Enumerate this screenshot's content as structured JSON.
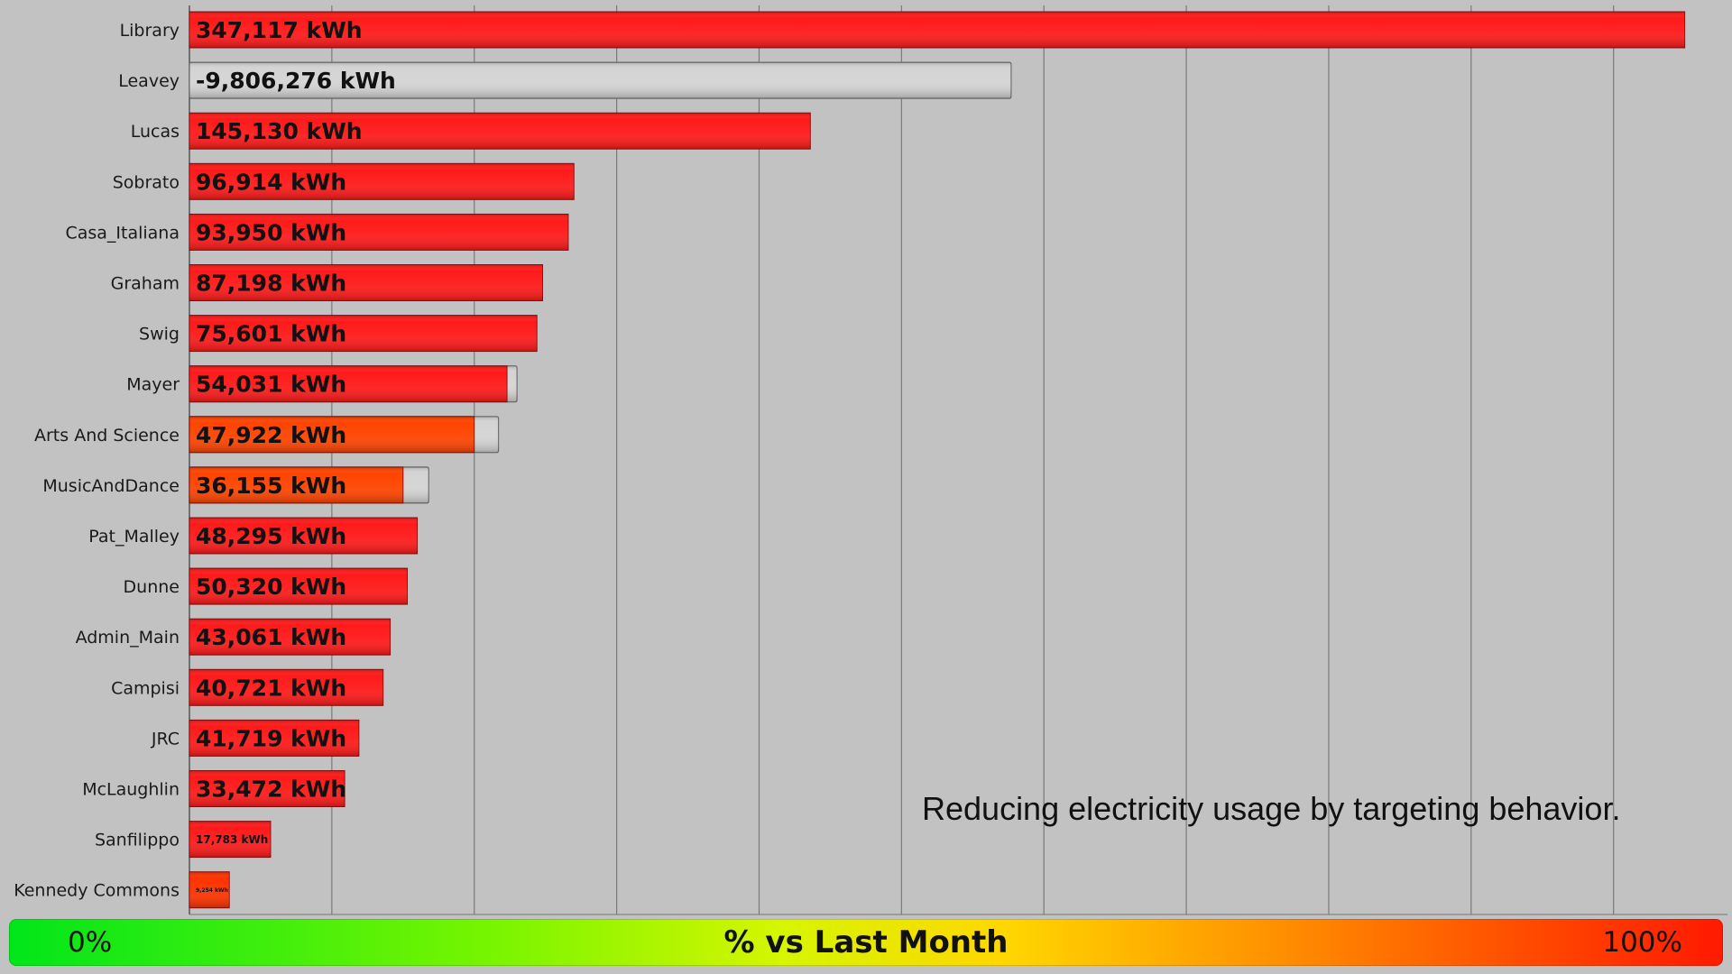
{
  "chart_data": {
    "type": "bar",
    "orientation": "horizontal",
    "categories": [
      "Library",
      "Leavey",
      "Lucas",
      "Sobrato",
      "Casa_Italiana",
      "Graham",
      "Swig",
      "Mayer",
      "Arts And Science",
      "MusicAndDance",
      "Pat_Malley",
      "Dunne",
      "Admin_Main",
      "Campisi",
      "JRC",
      "McLaughlin",
      "Sanfilippo",
      "Kennedy Commons"
    ],
    "value_labels": [
      "347,117 kWh",
      "-9,806,276 kWh",
      "145,130 kWh",
      "96,914 kWh",
      "93,950 kWh",
      "87,198 kWh",
      "75,601 kWh",
      "54,031 kWh",
      "47,922 kWh",
      "36,155 kWh",
      "48,295 kWh",
      "50,320 kWh",
      "43,061 kWh",
      "40,721 kWh",
      "41,719 kWh",
      "33,472 kWh",
      "17,783 kWh",
      "9,254 kWh"
    ],
    "series": [
      {
        "values": [
          105,
          0,
          43.6,
          27,
          26.6,
          24.8,
          24.4,
          22.3,
          20,
          15,
          16,
          15.3,
          14.1,
          13.6,
          11.9,
          10.9,
          5.7,
          2.8
        ]
      },
      {
        "values": [
          0,
          57.7,
          0,
          0,
          0,
          0,
          0,
          23,
          21.7,
          16.8,
          0,
          0,
          0,
          0,
          0,
          0,
          0,
          0
        ]
      }
    ],
    "bar_colors": [
      "#ff1a1a",
      "#ff1a1a",
      "#ff1a1a",
      "#ff1a1a",
      "#ff1a1a",
      "#ff1a1a",
      "#ff1a1a",
      "#ff1a1a",
      "#ff4400",
      "#ff4400",
      "#ff1a1a",
      "#ff1a1a",
      "#ff1a1a",
      "#ff1a1a",
      "#ff1a1a",
      "#ff1a1a",
      "#ff1a1a",
      "#ff3300"
    ],
    "x_range": [
      0,
      108
    ],
    "grid": true,
    "annotation": "Reducing electricity usage by targeting behavior."
  },
  "legend": {
    "min_label": "0%",
    "title": "% vs Last Month",
    "max_label": "100%"
  }
}
